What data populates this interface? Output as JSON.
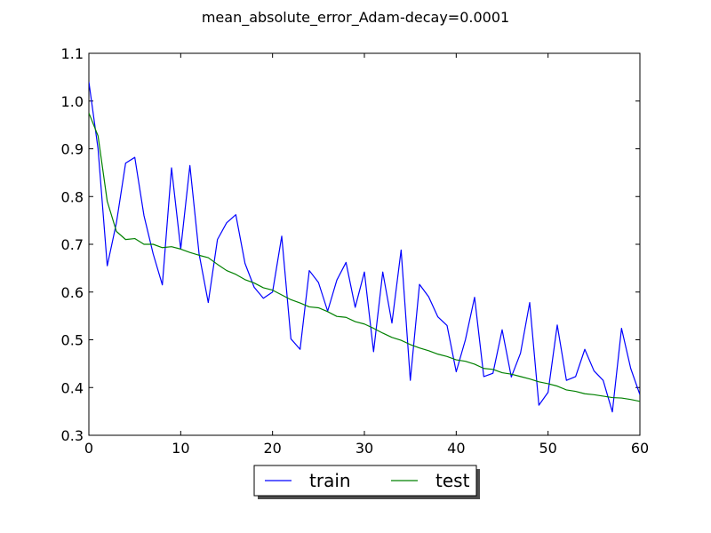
{
  "chart_data": {
    "type": "line",
    "title": "mean_absolute_error_Adam-decay=0.0001",
    "xlabel": "",
    "ylabel": "",
    "xlim": [
      0,
      60
    ],
    "ylim": [
      0.3,
      1.1
    ],
    "xticks": [
      0,
      10,
      20,
      30,
      40,
      50,
      60
    ],
    "yticks": [
      0.3,
      0.4,
      0.5,
      0.6,
      0.7,
      0.8,
      0.9,
      1.0,
      1.1
    ],
    "xtick_labels": [
      "0",
      "10",
      "20",
      "30",
      "40",
      "50",
      "60"
    ],
    "ytick_labels": [
      "0.3",
      "0.4",
      "0.5",
      "0.6",
      "0.7",
      "0.8",
      "0.9",
      "1.0",
      "1.1"
    ],
    "grid": false,
    "legend_position": "lower-center-outside",
    "series": [
      {
        "name": "train",
        "color": "#0000ff",
        "x": [
          0,
          1,
          2,
          3,
          4,
          5,
          6,
          7,
          8,
          9,
          10,
          11,
          12,
          13,
          14,
          15,
          16,
          17,
          18,
          19,
          20,
          21,
          22,
          23,
          24,
          25,
          26,
          27,
          28,
          29,
          30,
          31,
          32,
          33,
          34,
          35,
          36,
          37,
          38,
          39,
          40,
          41,
          42,
          43,
          44,
          45,
          46,
          47,
          48,
          49,
          50,
          51,
          52,
          53,
          54,
          55,
          56,
          57,
          58,
          59,
          60
        ],
        "y": [
          1.04,
          0.9,
          0.655,
          0.745,
          0.87,
          0.882,
          0.76,
          0.68,
          0.615,
          0.86,
          0.69,
          0.865,
          0.68,
          0.578,
          0.71,
          0.745,
          0.762,
          0.66,
          0.61,
          0.587,
          0.6,
          0.717,
          0.502,
          0.48,
          0.645,
          0.62,
          0.56,
          0.625,
          0.662,
          0.568,
          0.642,
          0.475,
          0.642,
          0.535,
          0.688,
          0.415,
          0.616,
          0.59,
          0.548,
          0.53,
          0.433,
          0.5,
          0.589,
          0.423,
          0.43,
          0.521,
          0.422,
          0.472,
          0.578,
          0.363,
          0.39,
          0.531,
          0.415,
          0.423,
          0.48,
          0.435,
          0.415,
          0.349,
          0.524,
          0.44,
          0.385
        ]
      },
      {
        "name": "test",
        "color": "#008000",
        "x": [
          0,
          1,
          2,
          3,
          4,
          5,
          6,
          7,
          8,
          9,
          10,
          11,
          12,
          13,
          14,
          15,
          16,
          17,
          18,
          19,
          20,
          21,
          22,
          23,
          24,
          25,
          26,
          27,
          28,
          29,
          30,
          31,
          32,
          33,
          34,
          35,
          36,
          37,
          38,
          39,
          40,
          41,
          42,
          43,
          44,
          45,
          46,
          47,
          48,
          49,
          50,
          51,
          52,
          53,
          54,
          55,
          56,
          57,
          58,
          59,
          60
        ],
        "y": [
          0.975,
          0.927,
          0.79,
          0.727,
          0.71,
          0.712,
          0.7,
          0.7,
          0.693,
          0.695,
          0.69,
          0.683,
          0.677,
          0.672,
          0.658,
          0.645,
          0.637,
          0.626,
          0.619,
          0.609,
          0.604,
          0.594,
          0.584,
          0.577,
          0.569,
          0.567,
          0.559,
          0.549,
          0.547,
          0.538,
          0.533,
          0.524,
          0.514,
          0.505,
          0.499,
          0.49,
          0.483,
          0.477,
          0.47,
          0.465,
          0.458,
          0.455,
          0.449,
          0.44,
          0.438,
          0.431,
          0.428,
          0.423,
          0.418,
          0.412,
          0.408,
          0.403,
          0.395,
          0.392,
          0.387,
          0.385,
          0.382,
          0.379,
          0.378,
          0.375,
          0.371
        ]
      }
    ]
  }
}
